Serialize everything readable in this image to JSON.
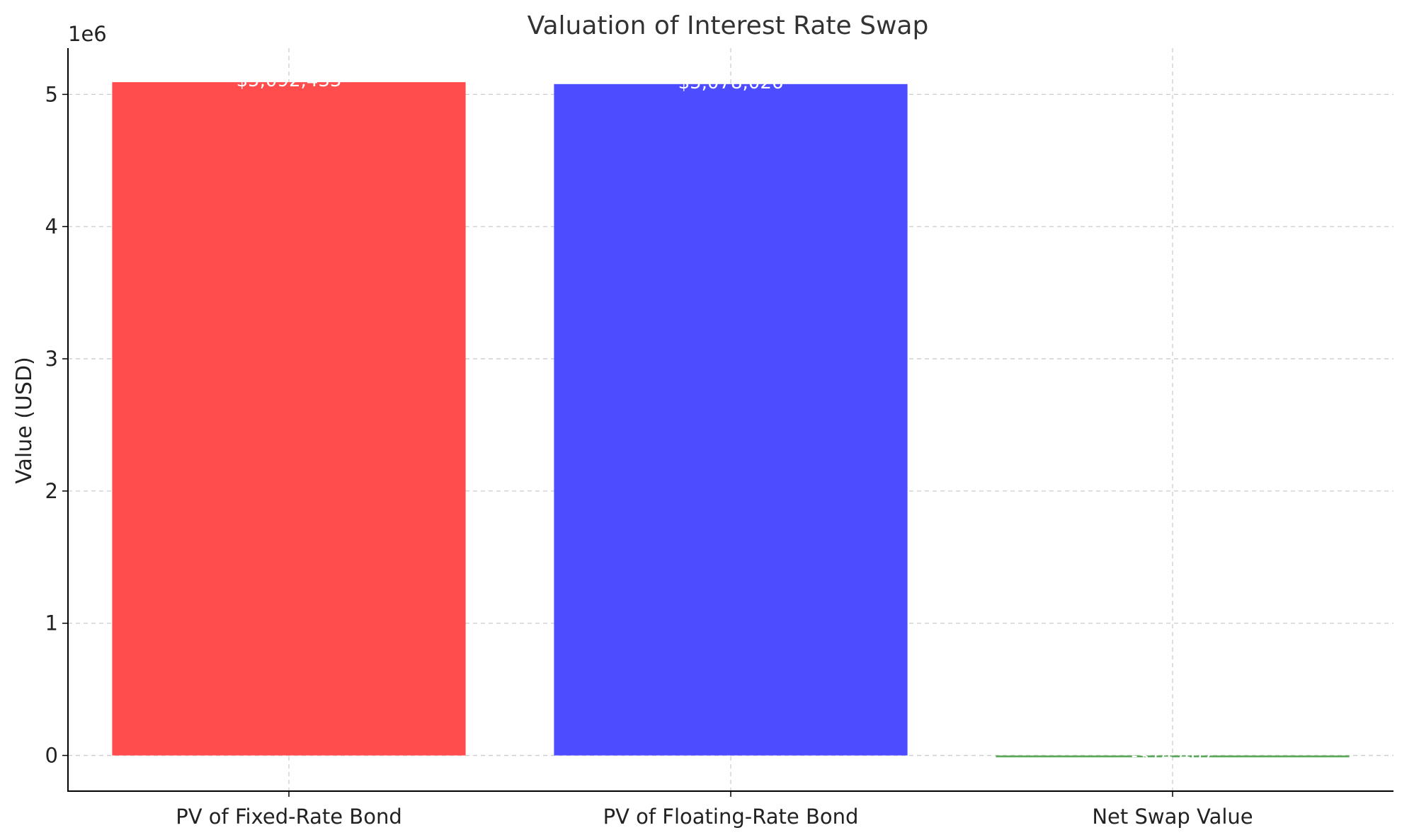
{
  "chart_data": {
    "type": "bar",
    "title": "Valuation of Interest Rate Swap",
    "xlabel": "",
    "ylabel": "Value (USD)",
    "y_offset_label": "1e6",
    "categories": [
      "PV of Fixed-Rate Bond",
      "PV of Floating-Rate Bond",
      "Net Swap Value"
    ],
    "values": [
      5092433,
      5078026,
      -14407
    ],
    "data_labels": [
      "$5,092,433",
      "$5,078,026",
      "-$14,407"
    ],
    "colors": [
      "#ff4d4d",
      "#4d4dff",
      "#5aa85a"
    ],
    "ylim": [
      -270000,
      5350000
    ],
    "yticks": [
      0,
      1000000,
      2000000,
      3000000,
      4000000,
      5000000
    ],
    "ytick_labels": [
      "0",
      "1",
      "2",
      "3",
      "4",
      "5"
    ],
    "grid": true
  }
}
